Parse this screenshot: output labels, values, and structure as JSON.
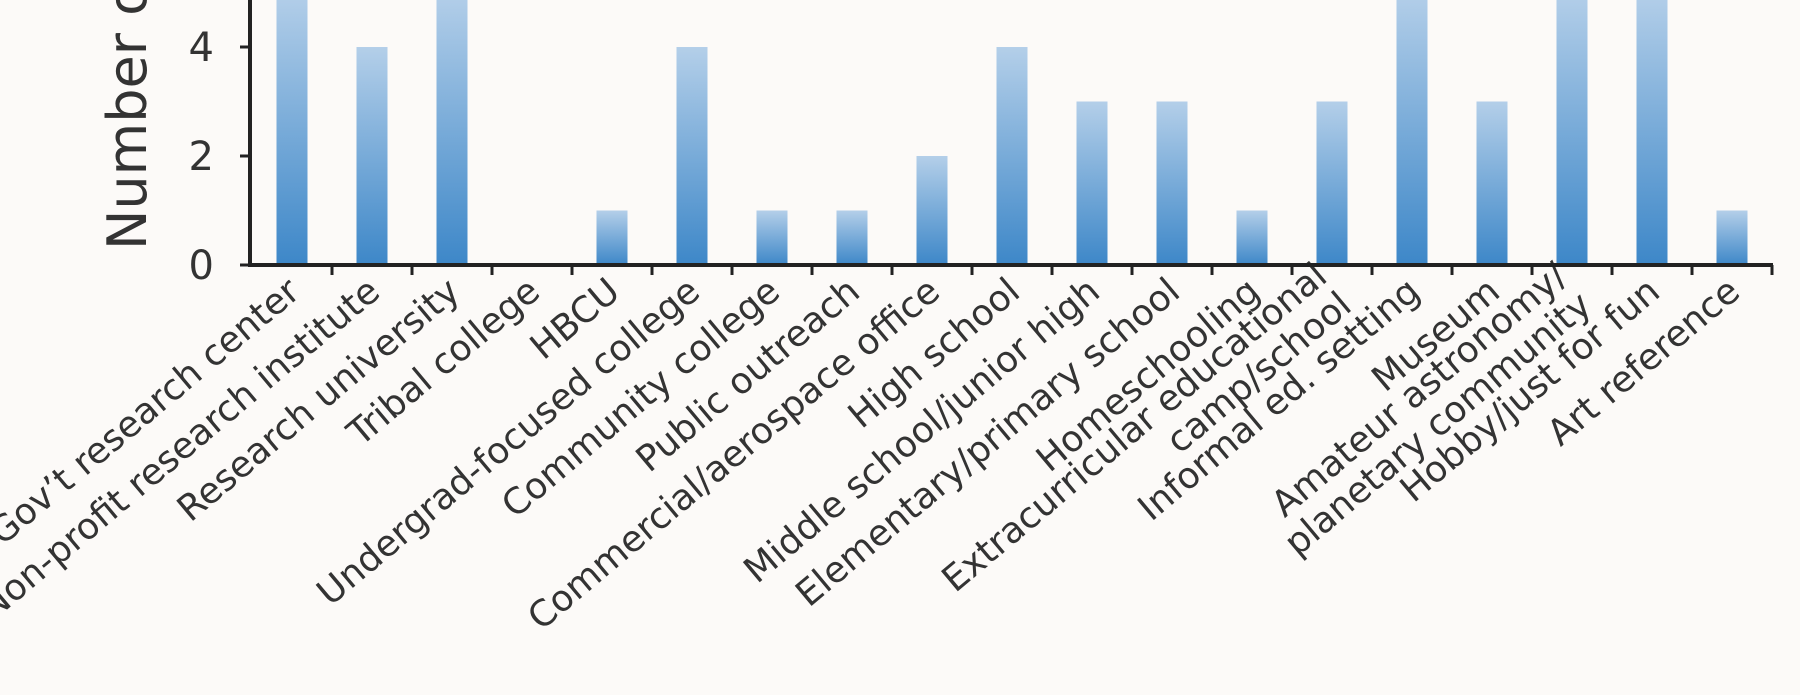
{
  "chart_data": {
    "type": "bar",
    "ylabel": "Number o",
    "ylim": [
      0,
      5
    ],
    "yticks": [
      0,
      2,
      4
    ],
    "categories": [
      "Gov’t research center",
      "Non-profit research institute",
      "Research university",
      "Tribal college",
      "HBCU",
      "Undergrad-focused college",
      "Community college",
      "Public outreach",
      "Commercial/aerospace office",
      "High school",
      "Middle school/junior high",
      "Elementary/primary school",
      "Homeschooling",
      "Extracurricular educational camp/school",
      "Informal ed. setting",
      "Museum",
      "Amateur astronomy/ planetary community",
      "Hobby/just for fun",
      "Art reference"
    ],
    "label_lines": [
      [
        "Gov’t research center"
      ],
      [
        "Non-profit research institute"
      ],
      [
        "Research university"
      ],
      [
        "Tribal college"
      ],
      [
        "HBCU"
      ],
      [
        "Undergrad-focused college"
      ],
      [
        "Community college"
      ],
      [
        "Public outreach"
      ],
      [
        "Commercial/aerospace office"
      ],
      [
        "High school"
      ],
      [
        "Middle school/junior high"
      ],
      [
        "Elementary/primary school"
      ],
      [
        "Homeschooling"
      ],
      [
        "Extracurricular educational",
        "camp/school"
      ],
      [
        "Informal ed. setting"
      ],
      [
        "Museum"
      ],
      [
        "Amateur astronomy/",
        "planetary community"
      ],
      [
        "Hobby/just for fun"
      ],
      [
        "Art reference"
      ]
    ],
    "values": [
      5,
      4,
      5,
      0,
      1,
      4,
      1,
      1,
      2,
      4,
      3,
      3,
      1,
      3,
      5,
      3,
      5,
      5,
      1
    ],
    "colors": {
      "bar_top": "#b4cfe9",
      "bar_bottom": "#3d87c8",
      "axis": "#222222"
    }
  }
}
